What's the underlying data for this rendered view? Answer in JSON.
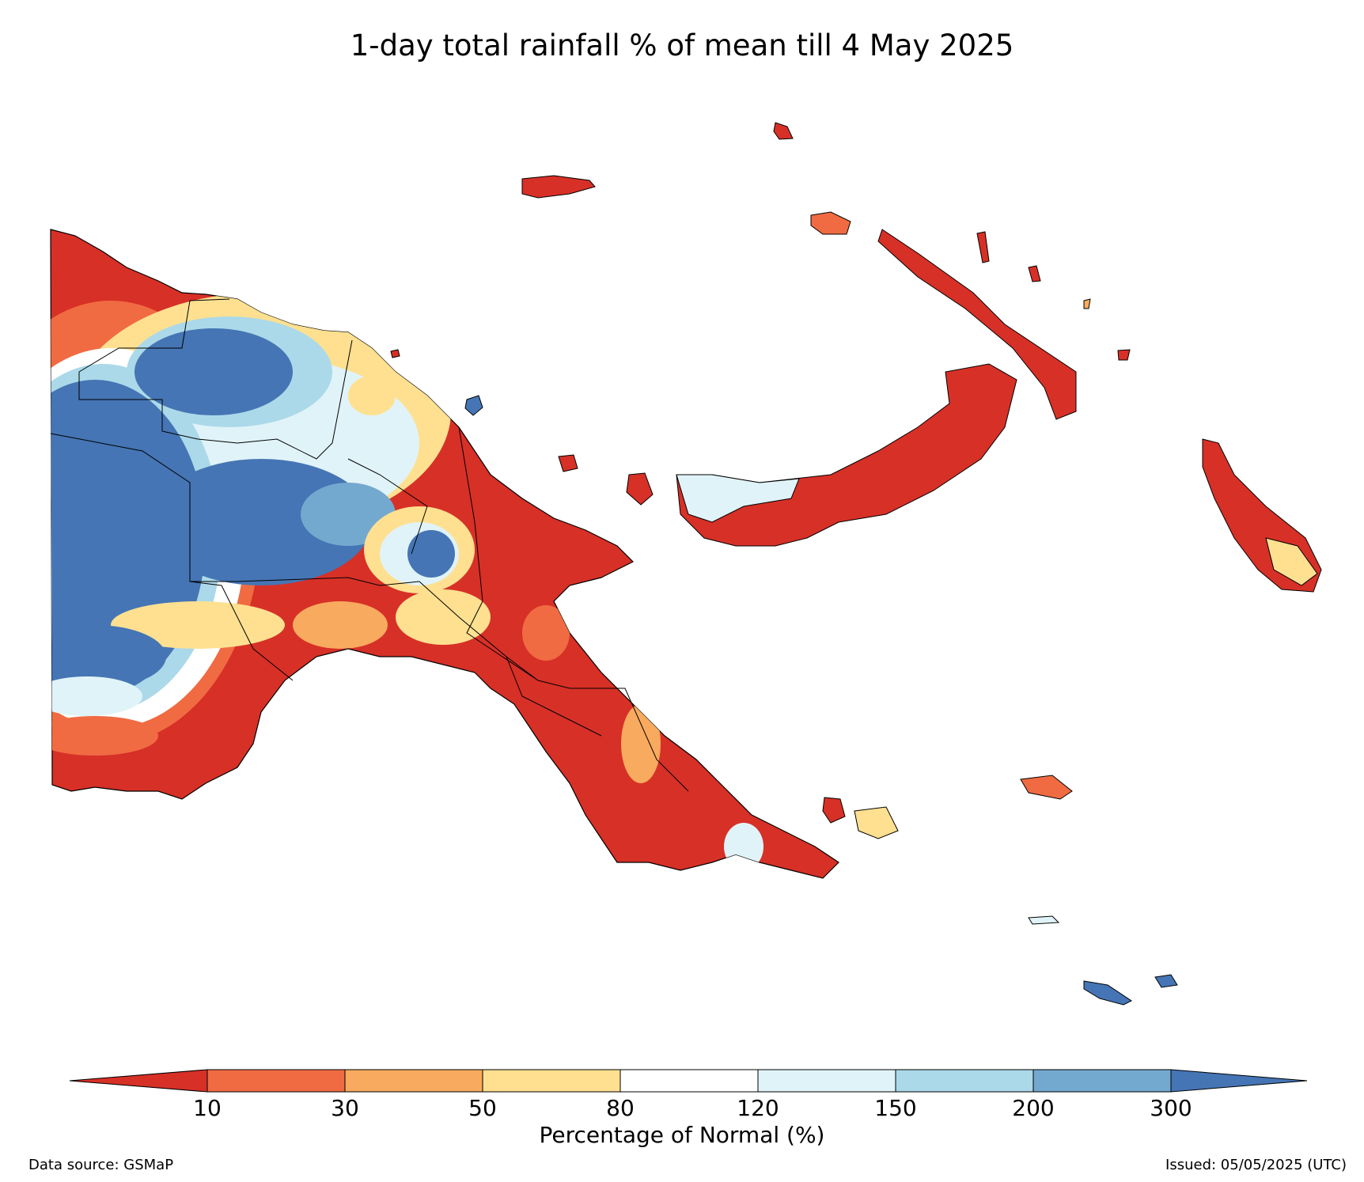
{
  "title": "1-day total rainfall % of mean till 4 May 2025",
  "legend": {
    "title": "Percentage of Normal (%)",
    "ticks": [
      "10",
      "30",
      "50",
      "80",
      "120",
      "150",
      "200",
      "300"
    ],
    "colors": [
      "#d73027",
      "#f06b42",
      "#f8aa5e",
      "#fee090",
      "#ffffff",
      "#e0f3f8",
      "#abd9e9",
      "#74a9cf",
      "#4575b4"
    ]
  },
  "footer": {
    "source": "Data source: GSMaP",
    "issued": "Issued: 05/05/2025 (UTC)"
  }
}
